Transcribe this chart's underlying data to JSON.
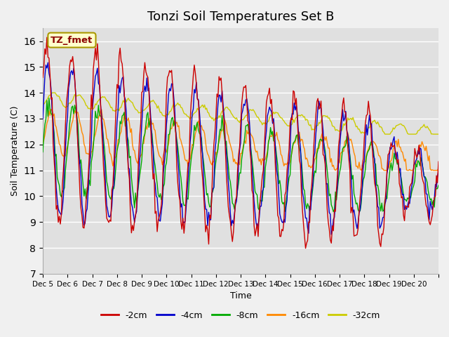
{
  "title": "Tonzi Soil Temperatures Set B",
  "xlabel": "Time",
  "ylabel": "Soil Temperature (C)",
  "ylim": [
    7.0,
    16.5
  ],
  "yticks": [
    7.0,
    8.0,
    9.0,
    10.0,
    11.0,
    12.0,
    13.0,
    14.0,
    15.0,
    16.0
  ],
  "x_tick_positions": [
    0,
    1,
    2,
    3,
    4,
    5,
    6,
    7,
    8,
    9,
    10,
    11,
    12,
    13,
    14,
    15,
    16
  ],
  "x_labels": [
    "Dec 5",
    "Dec 6",
    "Dec 7",
    "Dec 8",
    "Dec 9",
    "Dec 10",
    "Dec 11",
    "Dec 12",
    "Dec 13",
    "Dec 14",
    "Dec 15",
    "Dec 16",
    "Dec 17",
    "Dec 18",
    "Dec 19",
    "Dec 20",
    ""
  ],
  "series_colors": [
    "#cc0000",
    "#0000cc",
    "#00aa00",
    "#ff8800",
    "#cccc00"
  ],
  "series_labels": [
    "-2cm",
    "-4cm",
    "-8cm",
    "-16cm",
    "-32cm"
  ],
  "legend_label": "TZ_fmet",
  "background_color": "#f0f0f0",
  "plot_bg_color": "#e0e0e0",
  "n_points": 385,
  "title_fontsize": 13,
  "label_fontsize": 9
}
